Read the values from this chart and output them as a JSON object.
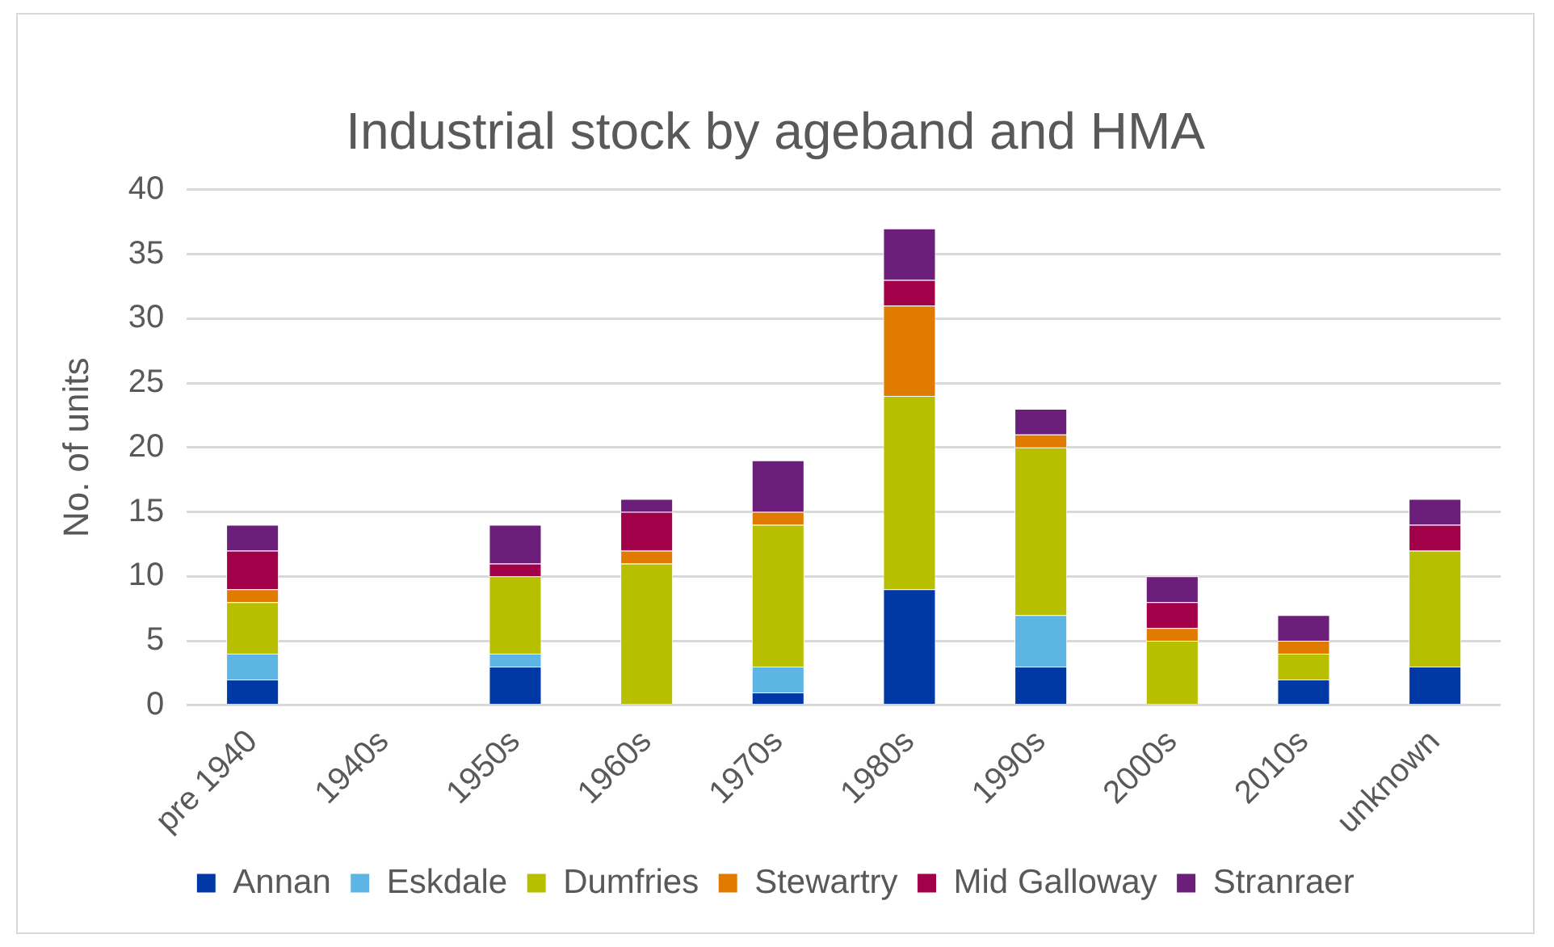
{
  "chart_data": {
    "type": "bar",
    "stacked": true,
    "title": "Industrial stock by ageband and HMA",
    "ylabel": "No. of units",
    "categories": [
      "pre 1940",
      "1940s",
      "1950s",
      "1960s",
      "1970s",
      "1980s",
      "1990s",
      "2000s",
      "2010s",
      "unknown"
    ],
    "series": [
      {
        "name": "Annan",
        "color": "#0039a6",
        "values": [
          2,
          0,
          3,
          0,
          1,
          9,
          3,
          0,
          2,
          3
        ]
      },
      {
        "name": "Eskdale",
        "color": "#5db5e3",
        "values": [
          2,
          0,
          1,
          0,
          2,
          0,
          4,
          0,
          0,
          0
        ]
      },
      {
        "name": "Dumfries",
        "color": "#b8bf00",
        "values": [
          4,
          0,
          6,
          11,
          11,
          15,
          13,
          5,
          2,
          9
        ]
      },
      {
        "name": "Stewartry",
        "color": "#e07b00",
        "values": [
          1,
          0,
          0,
          1,
          1,
          7,
          1,
          1,
          1,
          0
        ]
      },
      {
        "name": "Mid Galloway",
        "color": "#a3004a",
        "values": [
          3,
          0,
          1,
          3,
          0,
          2,
          0,
          2,
          0,
          2
        ]
      },
      {
        "name": "Stranraer",
        "color": "#6b1f7a",
        "values": [
          2,
          0,
          3,
          1,
          4,
          4,
          2,
          2,
          2,
          2
        ]
      }
    ],
    "ylim": [
      0,
      40
    ],
    "yticks": [
      0,
      5,
      10,
      15,
      20,
      25,
      30,
      35,
      40
    ],
    "grid": "y",
    "legend": "bottom"
  }
}
